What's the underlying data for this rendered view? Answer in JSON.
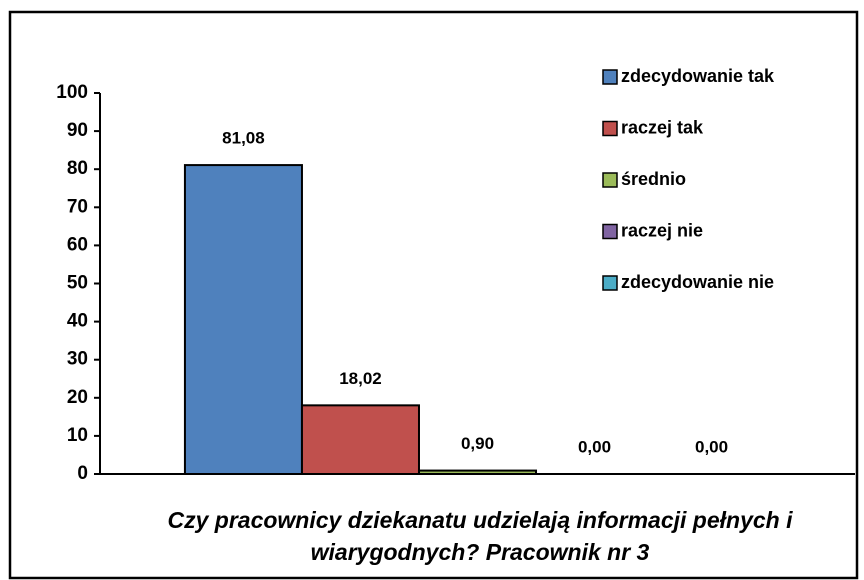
{
  "chart_data": {
    "type": "bar",
    "categories": [
      "Czy pracownicy dziekanatu udzielają informacji pełnych i wiarygodnych? Pracownik nr 3"
    ],
    "series": [
      {
        "name": "zdecydowanie tak",
        "color": "#4f81bd",
        "values": [
          81.08
        ],
        "value_labels": [
          "81,08"
        ]
      },
      {
        "name": "raczej tak",
        "color": "#c0504d",
        "values": [
          18.02
        ],
        "value_labels": [
          "18,02"
        ]
      },
      {
        "name": "średnio",
        "color": "#9bbb59",
        "values": [
          0.9
        ],
        "value_labels": [
          "0,90"
        ]
      },
      {
        "name": "raczej nie",
        "color": "#8064a2",
        "values": [
          0
        ],
        "value_labels": [
          "0,00"
        ]
      },
      {
        "name": "zdecydowanie nie",
        "color": "#4bacc6",
        "values": [
          0
        ],
        "value_labels": [
          "0,00"
        ]
      }
    ],
    "ylim": [
      0,
      100
    ],
    "yticks": [
      0,
      10,
      20,
      30,
      40,
      50,
      60,
      70,
      80,
      90,
      100
    ],
    "legend": "right"
  }
}
